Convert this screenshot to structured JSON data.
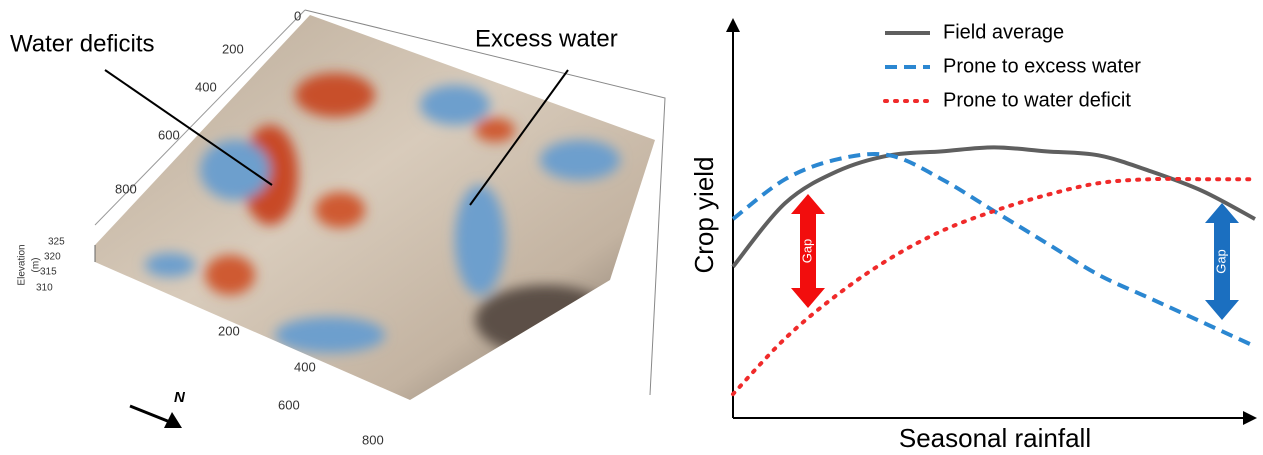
{
  "terrain": {
    "labels": [
      "Water deficits",
      "Excess water"
    ],
    "north": "N",
    "elevation_label": [
      "Elevation",
      "(m)"
    ],
    "elevation_ticks": [
      325,
      320,
      315,
      310
    ],
    "side_ticks": [
      0,
      200,
      400,
      600,
      800
    ],
    "front_ticks": [
      200,
      400,
      600,
      800
    ]
  },
  "chart_data": {
    "type": "line",
    "x_label": "Seasonal rainfall",
    "y_label": "Crop yield",
    "x": [
      0,
      1,
      2,
      3,
      4,
      5,
      6,
      7,
      8,
      9,
      10
    ],
    "xlim": [
      0,
      10
    ],
    "ylim": [
      0,
      10
    ],
    "series": [
      {
        "name": "Field average",
        "color": "#5f5f5f",
        "dash": "solid",
        "values": [
          3.8,
          5.4,
          6.2,
          6.6,
          6.7,
          6.8,
          6.7,
          6.6,
          6.2,
          5.7,
          5.0
        ]
      },
      {
        "name": "Prone to excess water",
        "color": "#2b87d1",
        "dash": "dashed",
        "values": [
          5.0,
          6.0,
          6.5,
          6.6,
          6.0,
          5.2,
          4.4,
          3.6,
          3.0,
          2.4,
          1.8
        ]
      },
      {
        "name": "Prone to water deficit",
        "color": "#f02a2a",
        "dash": "dotted",
        "values": [
          0.6,
          2.0,
          3.1,
          4.0,
          4.7,
          5.2,
          5.6,
          5.9,
          6.0,
          6.0,
          6.0
        ]
      }
    ],
    "annotations": [
      {
        "text": "Gap",
        "color": "#f20d0d"
      },
      {
        "text": "Gap",
        "color": "#1b6fc0"
      }
    ]
  }
}
